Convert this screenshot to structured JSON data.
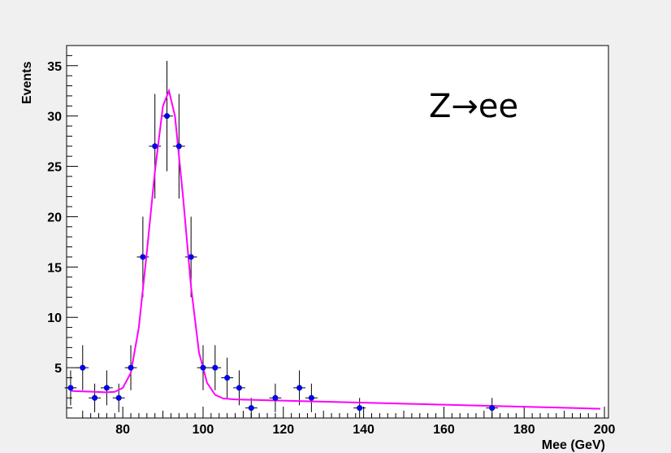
{
  "chart_data": {
    "type": "scatter",
    "title": "",
    "annotation": "Z→ee",
    "xlabel": "Mee (GeV)",
    "ylabel": "Events",
    "xlim": [
      66,
      201
    ],
    "ylim": [
      0,
      37
    ],
    "x_ticks": [
      80,
      100,
      120,
      140,
      160,
      180,
      200
    ],
    "y_ticks": [
      5,
      10,
      15,
      20,
      25,
      30,
      35
    ],
    "grid": false,
    "colors": {
      "points": "#0000ff",
      "fit": "#ff00ff",
      "frame": "#000000",
      "plot_bg": "#ffffff",
      "page_bg": "#f0f0f0"
    },
    "series": [
      {
        "type": "errorbar",
        "points": [
          {
            "x": 67,
            "y": 3
          },
          {
            "x": 70,
            "y": 5
          },
          {
            "x": 73,
            "y": 2
          },
          {
            "x": 76,
            "y": 3
          },
          {
            "x": 79,
            "y": 2
          },
          {
            "x": 82,
            "y": 5
          },
          {
            "x": 85,
            "y": 16
          },
          {
            "x": 88,
            "y": 27
          },
          {
            "x": 91,
            "y": 30
          },
          {
            "x": 94,
            "y": 27
          },
          {
            "x": 97,
            "y": 16
          },
          {
            "x": 100,
            "y": 5
          },
          {
            "x": 103,
            "y": 5
          },
          {
            "x": 106,
            "y": 4
          },
          {
            "x": 109,
            "y": 3
          },
          {
            "x": 112,
            "y": 1
          },
          {
            "x": 118,
            "y": 2
          },
          {
            "x": 124,
            "y": 3
          },
          {
            "x": 127,
            "y": 2
          },
          {
            "x": 139,
            "y": 1
          },
          {
            "x": 172,
            "y": 1
          }
        ]
      },
      {
        "type": "fit-line",
        "points": [
          [
            67,
            2.7
          ],
          [
            70,
            2.65
          ],
          [
            73,
            2.6
          ],
          [
            76,
            2.55
          ],
          [
            78,
            2.6
          ],
          [
            80,
            3.0
          ],
          [
            82,
            4.5
          ],
          [
            84,
            9.0
          ],
          [
            86,
            16.5
          ],
          [
            88,
            24.5
          ],
          [
            90,
            31.0
          ],
          [
            91.5,
            32.5
          ],
          [
            93,
            30.0
          ],
          [
            95,
            22.0
          ],
          [
            97,
            13.0
          ],
          [
            99,
            6.5
          ],
          [
            101,
            3.5
          ],
          [
            103,
            2.3
          ],
          [
            105,
            1.95
          ],
          [
            108,
            1.85
          ],
          [
            115,
            1.78
          ],
          [
            130,
            1.62
          ],
          [
            150,
            1.42
          ],
          [
            170,
            1.22
          ],
          [
            190,
            1.02
          ],
          [
            199,
            0.92
          ]
        ]
      }
    ]
  }
}
